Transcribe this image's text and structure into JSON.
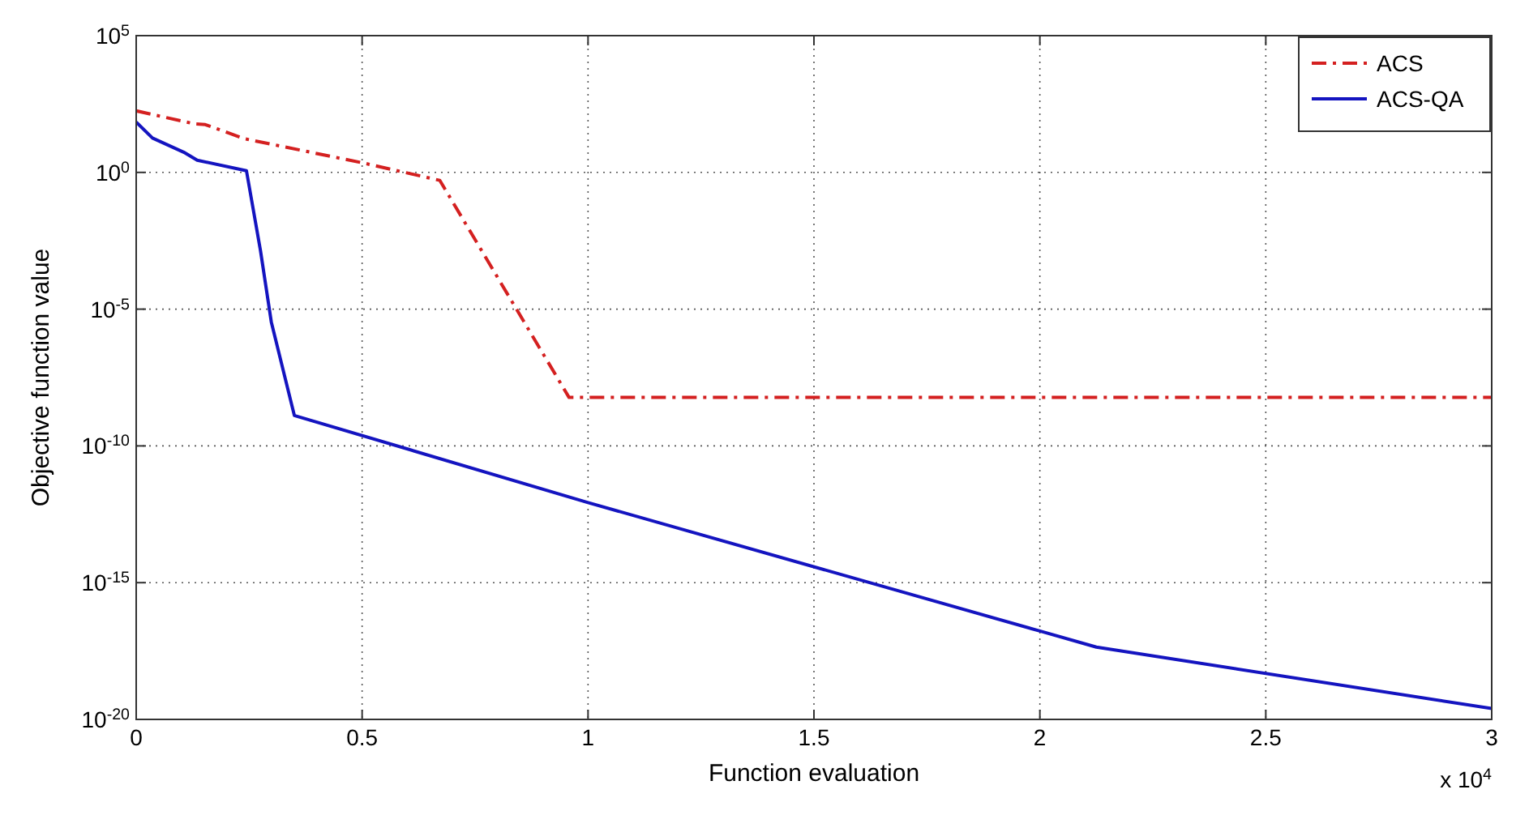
{
  "chart_data": {
    "type": "line",
    "xlabel": "Function evaluation",
    "ylabel": "Objective function value",
    "log": "y",
    "grid": true,
    "legend": "top right",
    "xlim": [
      0,
      3
    ],
    "xticks": [
      0,
      0.5,
      1,
      1.5,
      2,
      2.5,
      3
    ],
    "ylim": [
      1e-20,
      100000.0
    ],
    "yticks": [
      {
        "value": 1e-20,
        "label": "10$^{-20}$"
      },
      {
        "value": 1e-15,
        "label": "10$^{-15}$"
      },
      {
        "value": 1e-10,
        "label": "10$^{-10}$"
      },
      {
        "value": 1e-05,
        "label": "10$^{-5}$"
      },
      {
        "value": 1,
        "label": "10$^{0}$"
      },
      {
        "value": 100000.0,
        "label": "10$^{5}$"
      }
    ],
    "annotations": [
      "x 10$^{4}$"
    ],
    "series": [
      {
        "name": "ACS",
        "color": "#d42020",
        "line_style": "dashed",
        "x": [
          0,
          0.13,
          0.153,
          0.24,
          0.503,
          0.672,
          0.958,
          3
        ],
        "values": [
          178,
          59,
          56,
          17,
          2.2,
          0.51,
          5.9e-09,
          5.9e-09
        ]
      },
      {
        "name": "ACS-QA",
        "color": "#1414c0",
        "line_style": "solid",
        "x": [
          0,
          0.036,
          0.105,
          0.135,
          0.244,
          0.275,
          0.299,
          0.35,
          1,
          2,
          2.125,
          3
        ],
        "values": [
          69,
          18,
          5.5,
          2.8,
          1.15,
          0.0014,
          3.4e-06,
          1.3e-09,
          8.5e-13,
          1.7e-17,
          4.4e-18,
          2.5e-20
        ]
      }
    ]
  }
}
